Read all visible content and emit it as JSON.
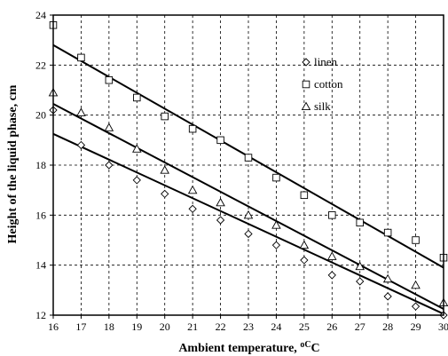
{
  "chart_data": {
    "type": "scatter",
    "xlabel": "Ambient temperature, ",
    "xlabel_unit": "oC",
    "ylabel": "Height of the liquid phase, cm",
    "xlim": [
      16,
      30
    ],
    "ylim": [
      12,
      24
    ],
    "x_ticks": [
      16,
      17,
      18,
      19,
      20,
      21,
      22,
      23,
      24,
      25,
      26,
      27,
      28,
      29,
      30
    ],
    "y_ticks": [
      12,
      14,
      16,
      18,
      20,
      22,
      24
    ],
    "grid": true,
    "legend_position": "top-right",
    "series": [
      {
        "name": "linen",
        "marker": "diamond",
        "x": [
          16,
          17,
          18,
          19,
          20,
          21,
          22,
          23,
          24,
          25,
          26,
          27,
          28,
          29,
          30
        ],
        "y": [
          20.2,
          18.8,
          18.0,
          17.4,
          16.85,
          16.25,
          15.8,
          15.25,
          14.8,
          14.2,
          13.6,
          13.35,
          12.75,
          12.35,
          12.0
        ],
        "fit": [
          19.25,
          12.05
        ]
      },
      {
        "name": "cotton",
        "marker": "square",
        "x": [
          16,
          17,
          18,
          19,
          20,
          21,
          22,
          23,
          24,
          25,
          26,
          27,
          28,
          29,
          30
        ],
        "y": [
          23.6,
          22.3,
          21.4,
          20.7,
          19.95,
          19.45,
          19.0,
          18.3,
          17.5,
          16.8,
          16.0,
          15.7,
          15.3,
          15.0,
          14.3
        ],
        "fit": [
          22.8,
          13.9
        ]
      },
      {
        "name": "silk",
        "marker": "triangle",
        "x": [
          16,
          17,
          18,
          19,
          20,
          21,
          22,
          23,
          24,
          25,
          26,
          27,
          28,
          29,
          30
        ],
        "y": [
          20.9,
          20.1,
          19.5,
          18.65,
          17.8,
          17.0,
          16.5,
          16.0,
          15.6,
          14.8,
          14.35,
          13.95,
          13.45,
          13.2,
          12.5
        ],
        "fit": [
          20.45,
          12.25
        ]
      }
    ]
  }
}
